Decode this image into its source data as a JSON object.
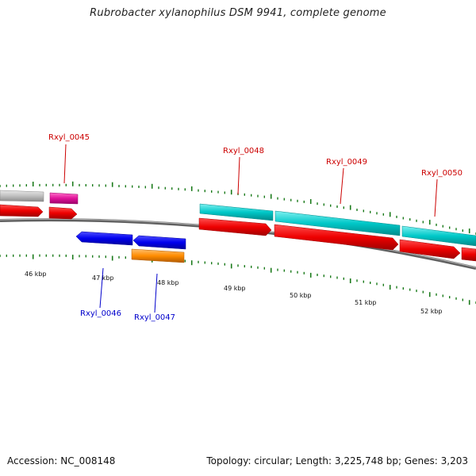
{
  "title": "Rubrobacter xylanophilus DSM 9941, complete genome",
  "footer": {
    "accession": "Accession: NC_008148",
    "topology": "Topology: circular; Length: 3,225,748 bp; Genes: 3,203"
  },
  "colors": {
    "backbone": "#808080",
    "tick": "#1a7a1a",
    "label_top": "#cc0000",
    "label_bottom": "#0000cc",
    "gene_red": "#ee0000",
    "gene_cyan": "#00c8c8",
    "gene_magenta": "#e0149a",
    "gene_gray": "#c0c0c0",
    "gene_blue": "#0000ee",
    "gene_orange": "#ff8c00"
  },
  "kbp_labels": [
    "46 kbp",
    "47 kbp",
    "48 kbp",
    "49 kbp",
    "50 kbp",
    "51 kbp",
    "52 kbp"
  ],
  "gene_labels": [
    {
      "id": "Rxyl_0045",
      "strand": "top"
    },
    {
      "id": "Rxyl_0048",
      "strand": "top"
    },
    {
      "id": "Rxyl_0049",
      "strand": "top"
    },
    {
      "id": "Rxyl_0050",
      "strand": "top"
    },
    {
      "id": "Rxyl_0046",
      "strand": "bottom"
    },
    {
      "id": "Rxyl_0047",
      "strand": "bottom"
    }
  ]
}
